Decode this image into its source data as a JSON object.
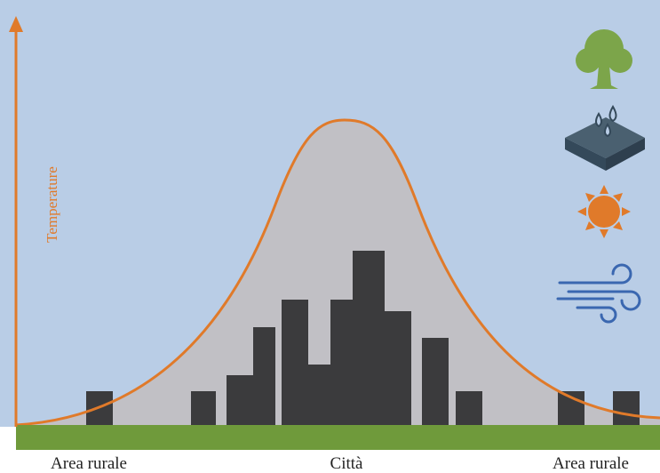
{
  "labels": {
    "y_axis": "Temperature",
    "left": "Area rurale",
    "center": "Città",
    "right": "Area rurale"
  }
}
